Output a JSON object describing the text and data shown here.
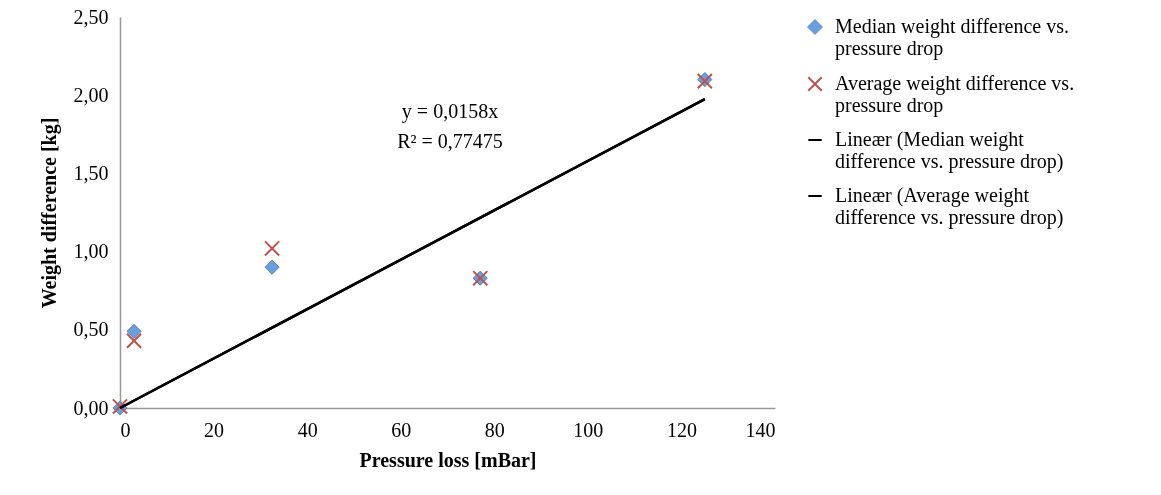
{
  "chart_data": {
    "type": "scatter",
    "xlabel": "Pressure loss [mBar]",
    "ylabel": "Weight difference [kg]",
    "xlim": [
      0,
      140
    ],
    "xticks": [
      0,
      20,
      40,
      60,
      80,
      100,
      120,
      140
    ],
    "ylim": [
      0,
      2.5
    ],
    "yticks": [
      {
        "value": 0,
        "label": "0,00"
      },
      {
        "value": 0.5,
        "label": "0,50"
      },
      {
        "value": 1,
        "label": "1,00"
      },
      {
        "value": 1.5,
        "label": "1,50"
      },
      {
        "value": 2,
        "label": "2,00"
      },
      {
        "value": 2.5,
        "label": "2,50"
      }
    ],
    "grid": false,
    "legend": "right",
    "series": [
      {
        "name": "Median weight difference vs. pressure drop",
        "marker": "diamond",
        "color": "#6a9fdc",
        "x": [
          0,
          3,
          32.5,
          77,
          125
        ],
        "values": [
          0.0,
          0.49,
          0.9,
          0.83,
          2.1
        ]
      },
      {
        "name": "Average weight difference vs. pressure drop",
        "marker": "cross",
        "color": "#c0504d",
        "x": [
          0,
          3,
          32.5,
          77,
          125
        ],
        "values": [
          0.01,
          0.43,
          1.02,
          0.83,
          2.09
        ]
      },
      {
        "name": "Lineær (Median weight difference vs. pressure drop)",
        "type": "line",
        "line_style": "solid",
        "color": "#000000",
        "x": [
          0,
          125
        ],
        "values": [
          0,
          1.975
        ]
      },
      {
        "name": "Lineær (Average weight difference vs. pressure drop)",
        "type": "line",
        "line_style": "solid",
        "color": "#000000",
        "x": [
          0,
          125
        ],
        "values": [
          0,
          1.975
        ]
      }
    ],
    "annotations": [
      "y = 0,0158x",
      "R² = 0,77475"
    ]
  }
}
